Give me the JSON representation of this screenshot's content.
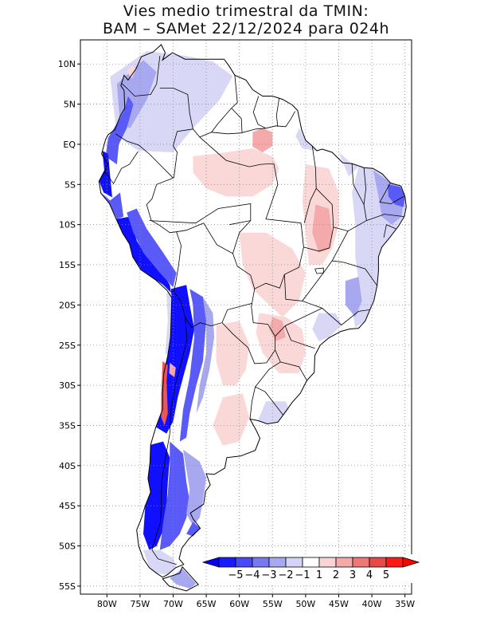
{
  "title": {
    "line1": "Vies medio trimestral da TMIN:",
    "line2": "BAM – SAMet 22/12/2024  para 024h"
  },
  "map": {
    "lon_range": [
      -84,
      -34
    ],
    "lat_range": [
      -56,
      13
    ],
    "grid": "dotted",
    "lon_ticks": [
      {
        "value": -80,
        "label": "80W"
      },
      {
        "value": -75,
        "label": "75W"
      },
      {
        "value": -70,
        "label": "70W"
      },
      {
        "value": -65,
        "label": "65W"
      },
      {
        "value": -60,
        "label": "60W"
      },
      {
        "value": -55,
        "label": "55W"
      },
      {
        "value": -50,
        "label": "50W"
      },
      {
        "value": -45,
        "label": "45W"
      },
      {
        "value": -40,
        "label": "40W"
      },
      {
        "value": -35,
        "label": "35W"
      }
    ],
    "lat_ticks": [
      {
        "value": 10,
        "label": "10N"
      },
      {
        "value": 5,
        "label": "5N"
      },
      {
        "value": 0,
        "label": "EQ"
      },
      {
        "value": -5,
        "label": "5S"
      },
      {
        "value": -10,
        "label": "10S"
      },
      {
        "value": -15,
        "label": "15S"
      },
      {
        "value": -20,
        "label": "20S"
      },
      {
        "value": -25,
        "label": "25S"
      },
      {
        "value": -30,
        "label": "30S"
      },
      {
        "value": -35,
        "label": "35S"
      },
      {
        "value": -40,
        "label": "40S"
      },
      {
        "value": -45,
        "label": "45S"
      },
      {
        "value": -50,
        "label": "50S"
      },
      {
        "value": -55,
        "label": "55S"
      }
    ]
  },
  "colorbar": {
    "labels": [
      "−5",
      "−4",
      "−3",
      "−2",
      "−1",
      "1",
      "2",
      "3",
      "4",
      "5"
    ],
    "colors": [
      "#1a1aff",
      "#4848f8",
      "#7878f0",
      "#a8a8f0",
      "#d4d4f6",
      "#ffffff",
      "#fad4d4",
      "#f4a8a8",
      "#ee7878",
      "#e84848",
      "#ff1a1a"
    ],
    "below_color": "#0000ff",
    "above_color": "#ff0000"
  },
  "regions": {
    "colors": {
      "strong_blue": "#1010ff",
      "blue": "#5a5af6",
      "light_blue": "#a8a8f0",
      "very_light_blue": "#d8d8f6",
      "very_light_red": "#fad8d8",
      "light_red": "#f4aaaa",
      "red": "#ee5555"
    }
  }
}
